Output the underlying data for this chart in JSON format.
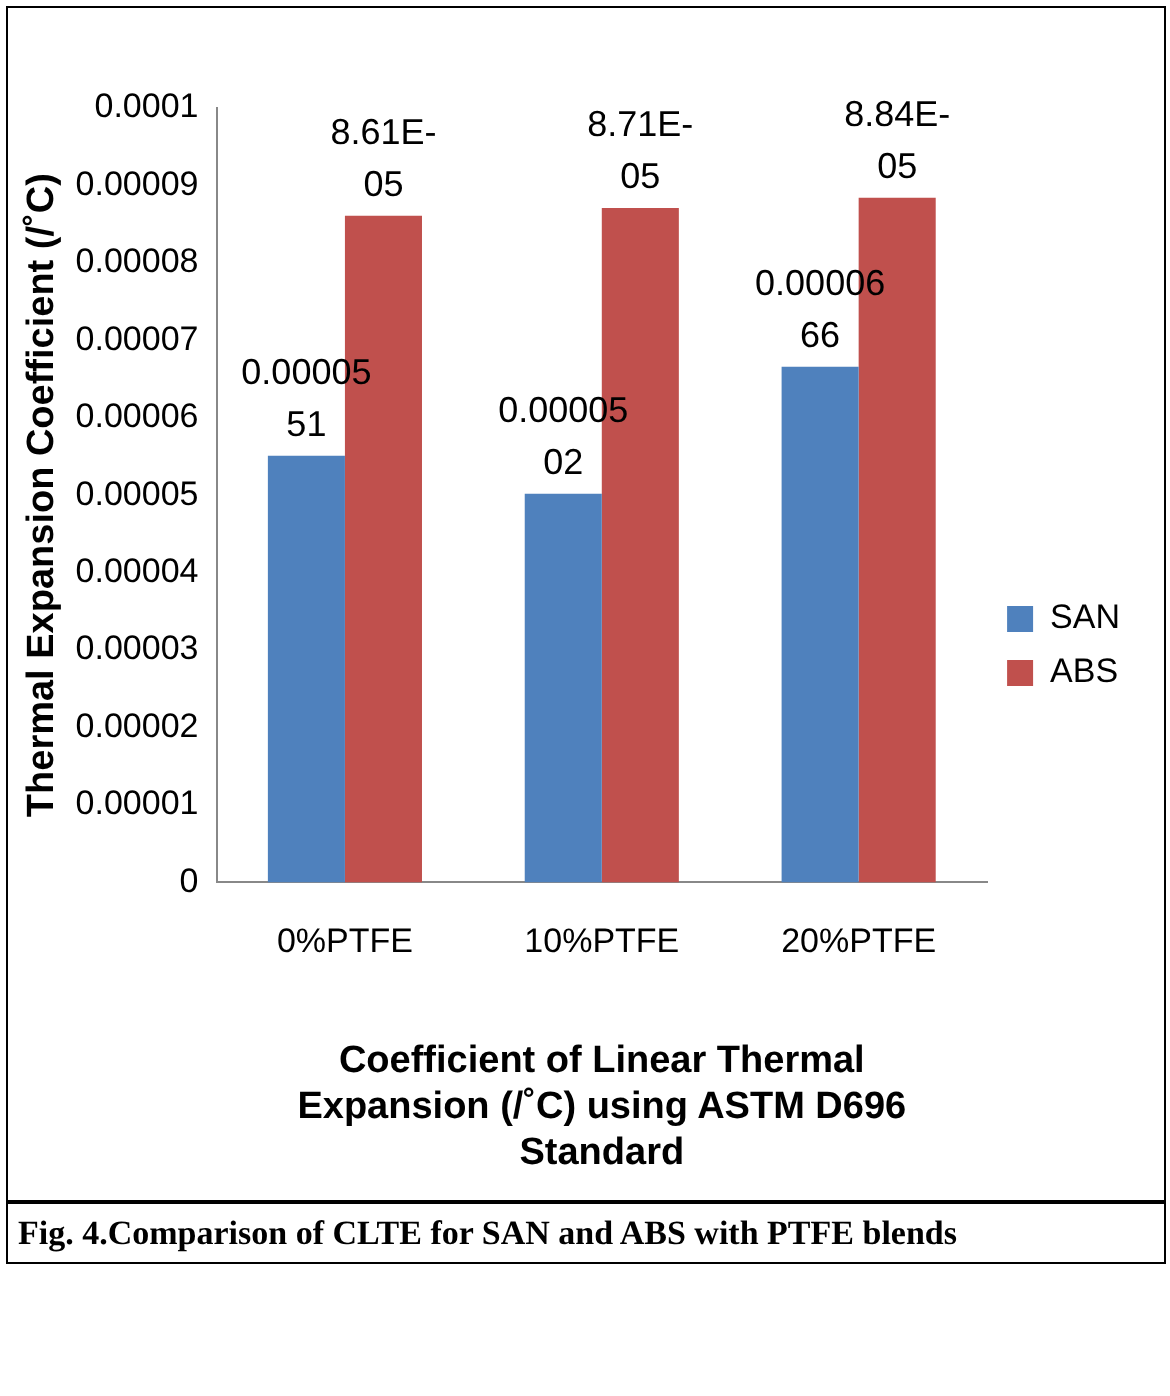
{
  "chart_data": {
    "type": "bar",
    "xlabel": "Coefficient of Linear Thermal Expansion (/˚C) using ASTM D696 Standard",
    "ylabel": "Thermal Expansion Coefficient (/˚C)",
    "categories": [
      "0%PTFE",
      "10%PTFE",
      "20%PTFE"
    ],
    "series": [
      {
        "name": "SAN",
        "color": "#4f81bd",
        "values": [
          5.51e-05,
          5.02e-05,
          6.66e-05
        ],
        "value_labels": [
          "0.0000551",
          "0.0000502",
          "0.0000666"
        ]
      },
      {
        "name": "ABS",
        "color": "#c0504d",
        "values": [
          8.61e-05,
          8.71e-05,
          8.84e-05
        ],
        "value_labels": [
          "8.61E-05",
          "8.71E-05",
          "8.84E-05"
        ]
      }
    ],
    "ylim": [
      0,
      0.0001
    ],
    "yticks": [
      0,
      {
        "value": 1e-05,
        "label": "0.00001"
      },
      {
        "value": 2e-05,
        "label": "0.00002"
      },
      {
        "value": 3e-05,
        "label": "0.00003"
      },
      {
        "value": 4e-05,
        "label": "0.00004"
      },
      {
        "value": 5e-05,
        "label": "0.00005"
      },
      {
        "value": 6e-05,
        "label": "0.00006"
      },
      {
        "value": 7e-05,
        "label": "0.00007"
      },
      {
        "value": 8e-05,
        "label": "0.00008"
      },
      {
        "value": 9e-05,
        "label": "0.00009"
      },
      {
        "value": 0.0001,
        "label": "0.0001"
      }
    ],
    "grid": false,
    "legend": "right",
    "annotations": [
      "Fig. 4.Comparison of CLTE for SAN and ABS with PTFE blends"
    ]
  }
}
